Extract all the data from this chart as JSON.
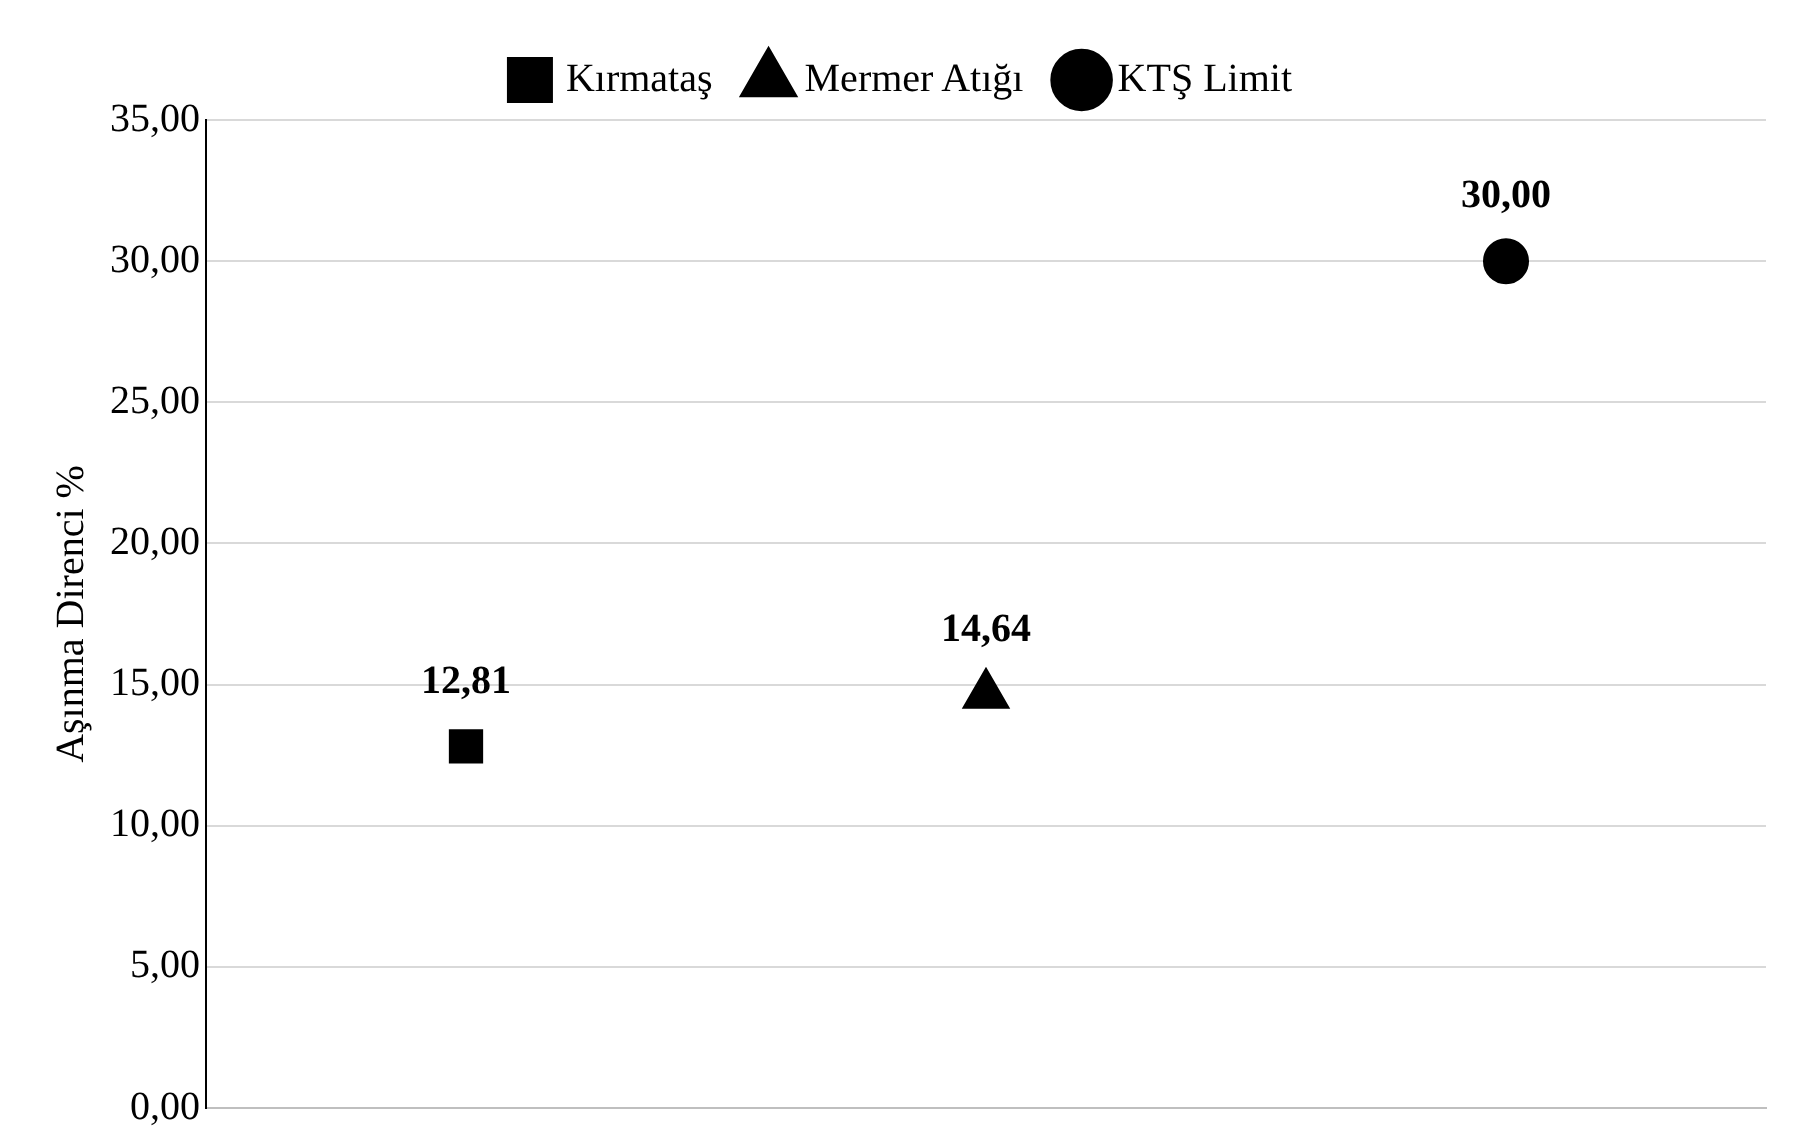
{
  "chart_data": {
    "type": "line",
    "ylabel": "Aşınma Direnci %",
    "categories": [
      null,
      null,
      null
    ],
    "series": [
      {
        "name": "Kırmataş",
        "color": "#000000",
        "marker": "square",
        "values": [
          12.81,
          null,
          null
        ],
        "value_labels": [
          "12,81",
          null,
          null
        ]
      },
      {
        "name": "Mermer Atığı",
        "color": "#000000",
        "marker": "triangle",
        "values": [
          null,
          14.64,
          null
        ],
        "value_labels": [
          null,
          "14,64",
          null
        ]
      },
      {
        "name": "KTŞ Limit",
        "color": "#000000",
        "marker": "circle",
        "values": [
          null,
          null,
          30
        ],
        "value_labels": [
          null,
          null,
          "30,00"
        ]
      }
    ],
    "ylim": [
      0,
      35
    ],
    "yticks": [
      {
        "value": 0,
        "label": "0,00"
      },
      {
        "value": 5,
        "label": "5,00"
      },
      {
        "value": 10,
        "label": "10,00"
      },
      {
        "value": 15,
        "label": "15,00"
      },
      {
        "value": 20,
        "label": "20,00"
      },
      {
        "value": 25,
        "label": "25,00"
      },
      {
        "value": 30,
        "label": "30,00"
      },
      {
        "value": 35,
        "label": "35,00"
      }
    ],
    "grid": "y",
    "legend": "top",
    "tick_labels": "y"
  }
}
